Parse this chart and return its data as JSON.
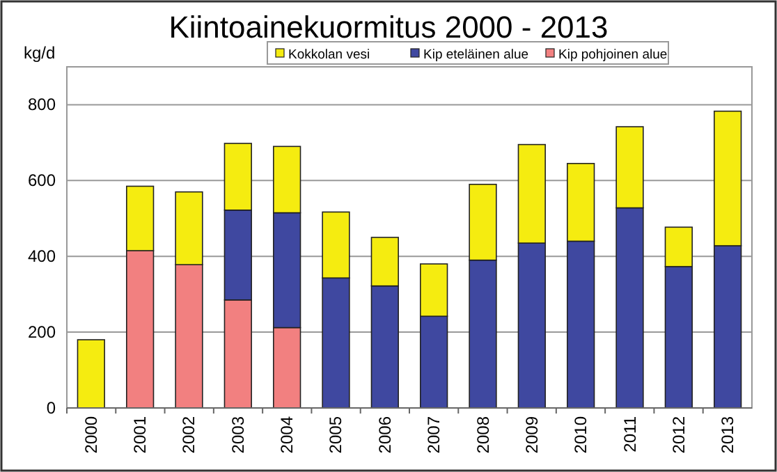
{
  "chart_data": {
    "type": "bar",
    "title": "Kiintoainekuormitus  2000 - 2013",
    "ylabel": "kg/d",
    "stacked": true,
    "legend": "top",
    "grid": "y",
    "categories": [
      "2000",
      "2001",
      "2002",
      "2003",
      "2004",
      "2005",
      "2006",
      "2007",
      "2008",
      "2009",
      "2010",
      "2011",
      "2012",
      "2013"
    ],
    "series": [
      {
        "name": "Kip pohjoinen alue",
        "color": "#f28080",
        "values": [
          0,
          415,
          378,
          285,
          212,
          0,
          0,
          0,
          0,
          0,
          0,
          0,
          0,
          0
        ]
      },
      {
        "name": "Kip eteläinen alue",
        "color": "#3f48a0",
        "values": [
          0,
          0,
          0,
          237,
          303,
          343,
          322,
          242,
          390,
          435,
          440,
          528,
          373,
          428
        ]
      },
      {
        "name": "Kokkolan vesi",
        "color": "#f5ec10",
        "values": [
          180,
          170,
          192,
          176,
          175,
          174,
          128,
          138,
          200,
          260,
          205,
          214,
          104,
          355
        ]
      }
    ],
    "ylim": [
      0,
      900
    ],
    "yticks": [
      0,
      200,
      400,
      600,
      800
    ]
  }
}
